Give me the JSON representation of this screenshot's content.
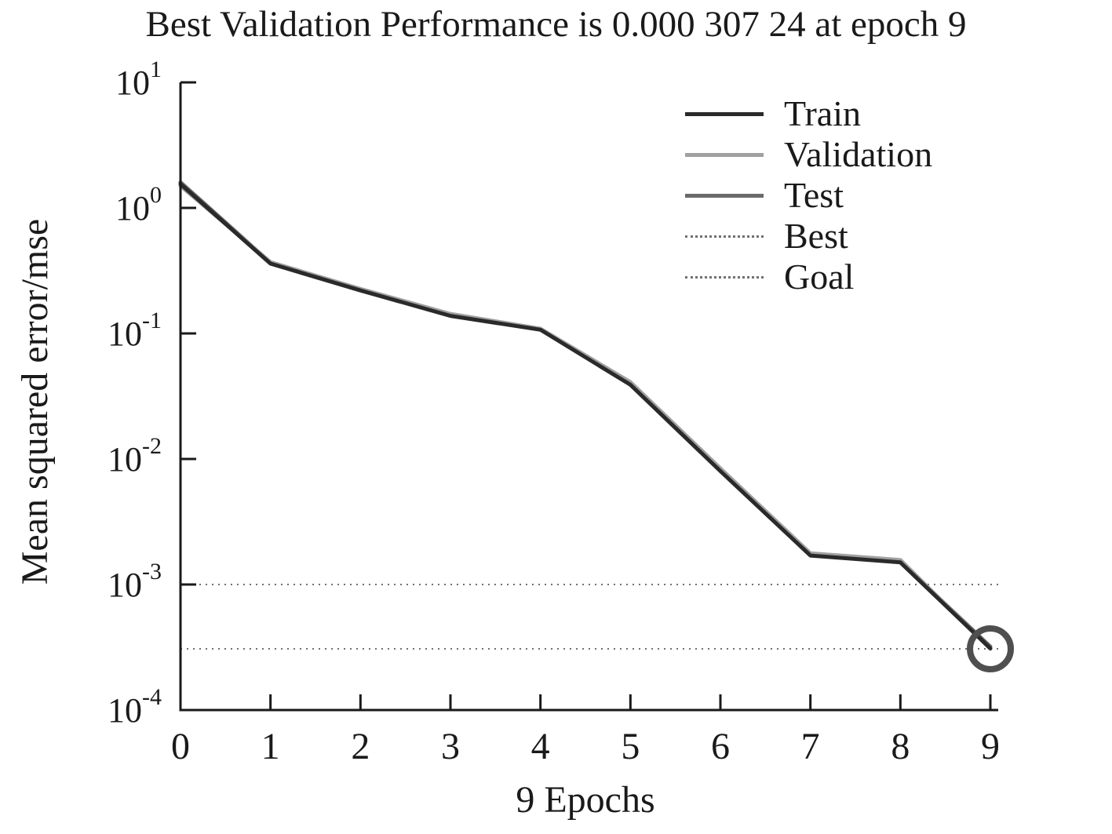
{
  "chart_data": {
    "type": "line",
    "title": "Best Validation Performance is 0.000 307 24 at epoch 9",
    "xlabel": "9 Epochs",
    "ylabel": "Mean squared error/mse",
    "y_scale": "log",
    "ylim": [
      0.0001,
      10
    ],
    "xlim": [
      0,
      9
    ],
    "x": [
      0,
      1,
      2,
      3,
      4,
      5,
      6,
      7,
      8,
      9
    ],
    "x_ticks": [
      0,
      1,
      2,
      3,
      4,
      5,
      6,
      7,
      8,
      9
    ],
    "y_tick_exponents": [
      1,
      0,
      -1,
      -2,
      -3,
      -4
    ],
    "y_tick_labels": [
      "10^1",
      "10^0",
      "10^-1",
      "10^-2",
      "10^-3",
      "10^-4"
    ],
    "grid": false,
    "legend_position": "top-right",
    "axis_color": "#1a1a1a",
    "text_color": "#1a1a1a",
    "series": [
      {
        "name": "Train",
        "color": "#2a2a2a",
        "style": "solid",
        "values": [
          1.55,
          0.36,
          0.22,
          0.138,
          0.107,
          0.039,
          0.008,
          0.0017,
          0.0015,
          0.00031
        ]
      },
      {
        "name": "Validation",
        "color": "#a0a0a0",
        "style": "solid",
        "values": [
          1.5,
          0.37,
          0.226,
          0.143,
          0.109,
          0.041,
          0.0084,
          0.00177,
          0.00157,
          0.00030724
        ]
      },
      {
        "name": "Test",
        "color": "#6b6b6b",
        "style": "solid",
        "values": [
          1.6,
          0.365,
          0.223,
          0.14,
          0.108,
          0.04,
          0.0082,
          0.00173,
          0.00152,
          0.00032
        ]
      }
    ],
    "reference_lines": [
      {
        "name": "Goal",
        "value": 0.001,
        "color": "#707070",
        "style": "dotted"
      },
      {
        "name": "Best",
        "value": 0.00030724,
        "color": "#707070",
        "style": "dotted"
      }
    ],
    "best_point": {
      "epoch": 9,
      "value": 0.00030724
    },
    "marker_color": "#4f4f4f"
  },
  "legend": {
    "entries": [
      {
        "label": "Train",
        "color": "#2a2a2a",
        "line_style": "solid",
        "thickness": 5
      },
      {
        "label": "Validation",
        "color": "#a0a0a0",
        "line_style": "solid",
        "thickness": 5
      },
      {
        "label": "Test",
        "color": "#6b6b6b",
        "line_style": "solid",
        "thickness": 5
      },
      {
        "label": "Best",
        "color": "#707070",
        "line_style": "dotted",
        "thickness": 3
      },
      {
        "label": "Goal",
        "color": "#707070",
        "line_style": "dotted",
        "thickness": 3
      }
    ]
  }
}
